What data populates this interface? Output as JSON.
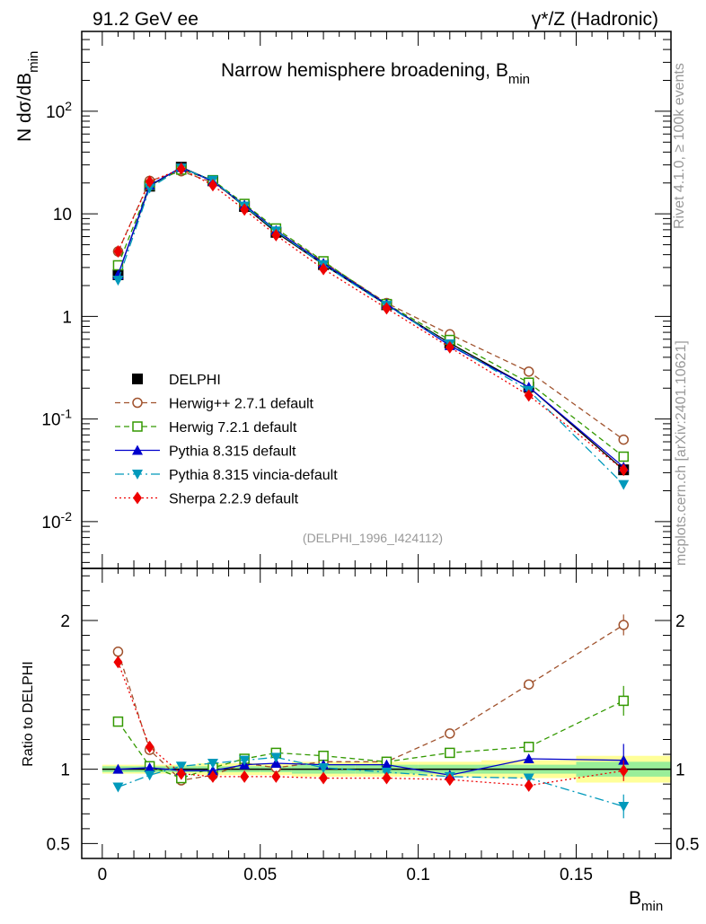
{
  "header": {
    "left": "91.2 GeV ee",
    "right": "γ*/Z (Hadronic)"
  },
  "side": {
    "rivet": "Rivet 4.1.0, ≥ 100k events",
    "mcplots": "mcplots.cern.ch [arXiv:2401.10621]"
  },
  "colors": {
    "delphi": "#000000",
    "herwigpp": "#a0522d",
    "herwig7": "#339900",
    "pythia": "#0000cc",
    "vincia": "#0099bb",
    "sherpa": "#ee0000",
    "band_outer": "#ffff99",
    "band_inner": "#99ee99"
  },
  "chart_data": [
    {
      "type": "line",
      "panel": "main",
      "title": "Narrow hemisphere broadening, B",
      "title_sub": "min",
      "ylabel": "N  dσ/dB",
      "ylabel_sub": "min",
      "yscale": "log",
      "ylim": [
        0.0035,
        600
      ],
      "xlim": [
        -0.0065,
        0.18
      ],
      "yticks": [
        {
          "v": 0.01,
          "base": "10",
          "exp": "-2"
        },
        {
          "v": 0.1,
          "base": "10",
          "exp": "-1"
        },
        {
          "v": 1,
          "base": "1",
          "exp": ""
        },
        {
          "v": 10,
          "base": "10",
          "exp": ""
        },
        {
          "v": 100,
          "base": "10",
          "exp": "2"
        }
      ],
      "watermark": "(DELPHI_1996_I424112)",
      "x": [
        0.005,
        0.015,
        0.025,
        0.035,
        0.045,
        0.055,
        0.07,
        0.09,
        0.11,
        0.135,
        0.165
      ],
      "series": [
        {
          "name": "DELPHI",
          "key": "delphi",
          "marker": "square",
          "dash": "",
          "values": [
            2.55,
            18.6,
            28.5,
            21.0,
            11.8,
            6.6,
            3.2,
            1.3,
            0.55,
            0.205,
            0.032
          ]
        },
        {
          "name": "Herwig++ 2.7.1 default",
          "key": "herwigpp",
          "marker": "circle-open",
          "dash": "6,4",
          "values": [
            4.3,
            21.0,
            26.0,
            20.2,
            12.3,
            6.9,
            3.4,
            1.35,
            0.67,
            0.29,
            0.063
          ]
        },
        {
          "name": "Herwig 7.2.1 default",
          "key": "herwig7",
          "marker": "square-open",
          "dash": "6,4",
          "values": [
            3.15,
            19.0,
            27.0,
            21.3,
            12.5,
            7.2,
            3.45,
            1.32,
            0.59,
            0.226,
            0.043
          ]
        },
        {
          "name": "Pythia 8.315 default",
          "key": "pythia",
          "marker": "triangle-up",
          "dash": "",
          "values": [
            2.55,
            19.0,
            28.3,
            20.7,
            12.2,
            6.9,
            3.3,
            1.32,
            0.52,
            0.205,
            0.034
          ]
        },
        {
          "name": "Pythia 8.315 vincia-default",
          "key": "vincia",
          "marker": "triangle-down",
          "dash": "10,4,2,4",
          "values": [
            2.25,
            17.8,
            28.0,
            21.3,
            11.9,
            6.8,
            3.2,
            1.28,
            0.54,
            0.19,
            0.023
          ]
        },
        {
          "name": "Sherpa 2.2.9 default",
          "key": "sherpa",
          "marker": "diamond",
          "dash": "2,3",
          "values": [
            4.3,
            20.6,
            27.5,
            19.0,
            11.0,
            6.2,
            2.9,
            1.2,
            0.5,
            0.17,
            0.032
          ]
        }
      ]
    },
    {
      "type": "line",
      "panel": "ratio",
      "ylabel": "Ratio to DELPHI",
      "ylim": [
        0.4,
        2.35
      ],
      "yticks": [
        {
          "v": 0.5,
          "label": "0.5"
        },
        {
          "v": 1,
          "label": "1"
        },
        {
          "v": 2,
          "label": "2"
        }
      ],
      "xlabel": "B",
      "xlabel_sub": "min",
      "xticks": [
        {
          "v": 0,
          "label": "0"
        },
        {
          "v": 0.05,
          "label": "0.05"
        },
        {
          "v": 0.1,
          "label": "0.1"
        },
        {
          "v": 0.15,
          "label": "0.15"
        }
      ],
      "bins": [
        [
          0,
          0.01
        ],
        [
          0.01,
          0.02
        ],
        [
          0.02,
          0.03
        ],
        [
          0.03,
          0.04
        ],
        [
          0.04,
          0.05
        ],
        [
          0.05,
          0.06
        ],
        [
          0.06,
          0.08
        ],
        [
          0.08,
          0.1
        ],
        [
          0.1,
          0.12
        ],
        [
          0.12,
          0.15
        ],
        [
          0.15,
          0.18
        ]
      ],
      "band_outer": [
        0.03,
        0.03,
        0.03,
        0.04,
        0.04,
        0.04,
        0.05,
        0.05,
        0.05,
        0.06,
        0.09
      ],
      "band_inner": [
        0.02,
        0.02,
        0.02,
        0.02,
        0.02,
        0.02,
        0.03,
        0.03,
        0.03,
        0.03,
        0.05
      ],
      "x": [
        0.005,
        0.015,
        0.025,
        0.035,
        0.045,
        0.055,
        0.07,
        0.09,
        0.11,
        0.135,
        0.165
      ],
      "series": [
        {
          "key": "herwigpp",
          "values": [
            1.79,
            1.13,
            0.925,
            0.96,
            1.04,
            1.01,
            1.05,
            1.05,
            1.24,
            1.57,
            1.97
          ],
          "err": [
            0,
            0,
            0,
            0,
            0,
            0,
            0,
            0,
            0,
            0.02,
            0.07
          ]
        },
        {
          "key": "herwig7",
          "values": [
            1.32,
            1.02,
            0.94,
            1.01,
            1.07,
            1.11,
            1.09,
            1.05,
            1.11,
            1.15,
            1.46
          ],
          "err": [
            0,
            0,
            0,
            0,
            0,
            0,
            0,
            0,
            0,
            0.02,
            0.1
          ]
        },
        {
          "key": "pythia",
          "values": [
            1.0,
            1.01,
            0.99,
            0.99,
            1.03,
            1.04,
            1.03,
            1.03,
            0.96,
            1.07,
            1.06
          ],
          "err": [
            0,
            0,
            0,
            0,
            0,
            0,
            0,
            0,
            0,
            0.03,
            0.11
          ]
        },
        {
          "key": "vincia",
          "values": [
            0.88,
            0.96,
            1.02,
            1.04,
            1.06,
            1.08,
            1.01,
            0.98,
            0.95,
            0.94,
            0.75
          ],
          "err": [
            0,
            0,
            0,
            0,
            0,
            0,
            0,
            0,
            0,
            0.03,
            0.08
          ]
        },
        {
          "key": "sherpa",
          "values": [
            1.72,
            1.15,
            0.97,
            0.95,
            0.95,
            0.95,
            0.94,
            0.94,
            0.93,
            0.89,
            0.99
          ],
          "err": [
            0,
            0,
            0,
            0,
            0,
            0,
            0,
            0,
            0,
            0.03,
            0.07
          ]
        }
      ]
    }
  ]
}
